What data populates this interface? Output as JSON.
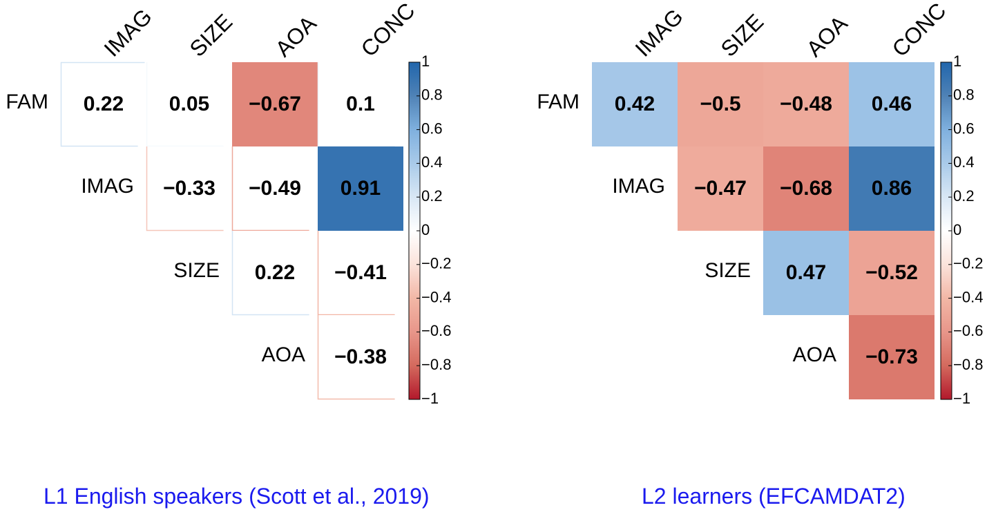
{
  "chart_data": [
    {
      "type": "heatmap",
      "title": "L1 English speakers (Scott et al., 2019)",
      "row_labels": [
        "FAM",
        "IMAG",
        "SIZE",
        "AOA"
      ],
      "col_labels": [
        "IMAG",
        "SIZE",
        "AOA",
        "CONC"
      ],
      "cells": [
        {
          "row": "FAM",
          "col": "IMAG",
          "value": 0.22,
          "label": "0.22"
        },
        {
          "row": "FAM",
          "col": "SIZE",
          "value": 0.05,
          "label": "0.05"
        },
        {
          "row": "FAM",
          "col": "AOA",
          "value": -0.67,
          "label": "−0.67"
        },
        {
          "row": "FAM",
          "col": "CONC",
          "value": 0.1,
          "label": "0.1"
        },
        {
          "row": "IMAG",
          "col": "SIZE",
          "value": -0.33,
          "label": "−0.33"
        },
        {
          "row": "IMAG",
          "col": "AOA",
          "value": -0.49,
          "label": "−0.49"
        },
        {
          "row": "IMAG",
          "col": "CONC",
          "value": 0.91,
          "label": "0.91"
        },
        {
          "row": "SIZE",
          "col": "AOA",
          "value": 0.22,
          "label": "0.22"
        },
        {
          "row": "SIZE",
          "col": "CONC",
          "value": -0.41,
          "label": "−0.41"
        },
        {
          "row": "AOA",
          "col": "CONC",
          "value": -0.38,
          "label": "−0.38"
        }
      ],
      "fill_mode": "significant-only",
      "significant": [
        [
          "FAM",
          "AOA"
        ],
        [
          "IMAG",
          "CONC"
        ]
      ],
      "colorbar": {
        "range": [
          -1,
          1
        ],
        "ticks": [
          "1",
          "0.8",
          "0.6",
          "0.4",
          "0.2",
          "0",
          "−0.2",
          "−0.4",
          "−0.6",
          "−0.8",
          "−1"
        ]
      }
    },
    {
      "type": "heatmap",
      "title": "L2 learners (EFCAMDAT2)",
      "row_labels": [
        "FAM",
        "IMAG",
        "SIZE",
        "AOA"
      ],
      "col_labels": [
        "IMAG",
        "SIZE",
        "AOA",
        "CONC"
      ],
      "cells": [
        {
          "row": "FAM",
          "col": "IMAG",
          "value": 0.42,
          "label": "0.42"
        },
        {
          "row": "FAM",
          "col": "SIZE",
          "value": -0.5,
          "label": "−0.5"
        },
        {
          "row": "FAM",
          "col": "AOA",
          "value": -0.48,
          "label": "−0.48"
        },
        {
          "row": "FAM",
          "col": "CONC",
          "value": 0.46,
          "label": "0.46"
        },
        {
          "row": "IMAG",
          "col": "SIZE",
          "value": -0.47,
          "label": "−0.47"
        },
        {
          "row": "IMAG",
          "col": "AOA",
          "value": -0.68,
          "label": "−0.68"
        },
        {
          "row": "IMAG",
          "col": "CONC",
          "value": 0.86,
          "label": "0.86"
        },
        {
          "row": "SIZE",
          "col": "AOA",
          "value": 0.47,
          "label": "0.47"
        },
        {
          "row": "SIZE",
          "col": "CONC",
          "value": -0.52,
          "label": "−0.52"
        },
        {
          "row": "AOA",
          "col": "CONC",
          "value": -0.73,
          "label": "−0.73"
        }
      ],
      "fill_mode": "all",
      "significant": [],
      "colorbar": {
        "range": [
          -1,
          1
        ],
        "ticks": [
          "1",
          "0.8",
          "0.6",
          "0.4",
          "0.2",
          "0",
          "−0.2",
          "−0.4",
          "−0.6",
          "−0.8",
          "−1"
        ]
      }
    }
  ],
  "captions": {
    "left": "L1 English speakers (Scott et al., 2019)",
    "right": "L2 learners (EFCAMDAT2)"
  }
}
